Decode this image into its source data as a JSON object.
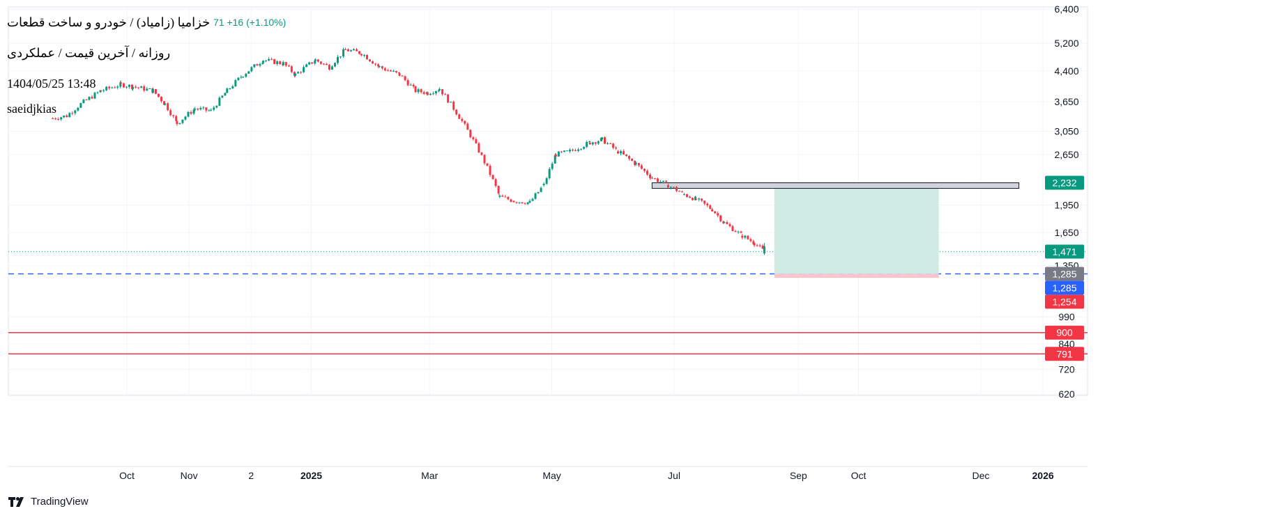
{
  "header": {
    "title": "خزامیا (زامیاد) / خودرو و ساخت قطعات",
    "subtitle": "روزانه / آخرین قیمت / عملکردی",
    "datetime": "1404/05/25 13:48",
    "author": "saeidjkias",
    "change_text": "71  +16 (+1.10%)"
  },
  "footer": {
    "brand": "TradingView",
    "logo_icon": "tradingview-logo-icon"
  },
  "colors": {
    "up": "#089981",
    "down": "#f23645",
    "grid": "#f0f3fa",
    "dashed_line": "#2962ff",
    "support_line": "#f23645",
    "target_zone": "#cfeae2",
    "stop_zone": "#f9c6cc",
    "resistance_box": "#d1d4dc"
  },
  "chart_data": {
    "type": "candlestick",
    "timeframe": "daily",
    "y_scale": "log",
    "ylim": [
      600,
      6700
    ],
    "y_ticks": [
      620,
      720,
      840,
      990,
      1350,
      1650,
      1950,
      2650,
      3050,
      3650,
      4400,
      5200,
      6400
    ],
    "x_ticks": [
      {
        "label": "Oct",
        "date": "2024-10-01",
        "bold": false
      },
      {
        "label": "Nov",
        "date": "2024-11-01",
        "bold": false
      },
      {
        "label": "2",
        "date": "2024-12-02",
        "bold": false
      },
      {
        "label": "2025",
        "date": "2025-01-01",
        "bold": true
      },
      {
        "label": "Mar",
        "date": "2025-03-01",
        "bold": false
      },
      {
        "label": "May",
        "date": "2025-05-01",
        "bold": false
      },
      {
        "label": "Jul",
        "date": "2025-07-01",
        "bold": false
      },
      {
        "label": "Sep",
        "date": "2025-09-01",
        "bold": false
      },
      {
        "label": "Oct",
        "date": "2025-10-01",
        "bold": false
      },
      {
        "label": "Dec",
        "date": "2025-12-01",
        "bold": false
      },
      {
        "label": "2026",
        "date": "2026-01-01",
        "bold": true
      }
    ],
    "price_path": [
      [
        "2024-08-25",
        3300
      ],
      [
        "2024-09-01",
        3350
      ],
      [
        "2024-09-08",
        3600
      ],
      [
        "2024-09-18",
        3900
      ],
      [
        "2024-09-28",
        4050
      ],
      [
        "2024-10-04",
        4000
      ],
      [
        "2024-10-14",
        3900
      ],
      [
        "2024-10-20",
        3600
      ],
      [
        "2024-10-26",
        3200
      ],
      [
        "2024-11-04",
        3500
      ],
      [
        "2024-11-12",
        3450
      ],
      [
        "2024-11-20",
        3900
      ],
      [
        "2024-11-28",
        4300
      ],
      [
        "2024-12-08",
        4700
      ],
      [
        "2024-12-18",
        4600
      ],
      [
        "2024-12-24",
        4300
      ],
      [
        "2025-01-03",
        4700
      ],
      [
        "2025-01-10",
        4500
      ],
      [
        "2025-01-18",
        5000
      ],
      [
        "2025-01-26",
        4900
      ],
      [
        "2025-02-04",
        4500
      ],
      [
        "2025-02-14",
        4300
      ],
      [
        "2025-02-22",
        3900
      ],
      [
        "2025-02-28",
        3850
      ],
      [
        "2025-03-06",
        3950
      ],
      [
        "2025-04-05",
        2050
      ],
      [
        "2025-04-12",
        2000
      ],
      [
        "2025-04-20",
        1980
      ],
      [
        "2025-04-27",
        2200
      ],
      [
        "2025-05-03",
        2650
      ],
      [
        "2025-05-10",
        2700
      ],
      [
        "2025-05-20",
        2850
      ],
      [
        "2025-05-26",
        2900
      ],
      [
        "2025-06-03",
        2700
      ],
      [
        "2025-06-12",
        2500
      ],
      [
        "2025-06-20",
        2300
      ],
      [
        "2025-06-28",
        2200
      ],
      [
        "2025-07-06",
        2080
      ],
      [
        "2025-07-12",
        2020
      ],
      [
        "2025-07-20",
        1900
      ],
      [
        "2025-07-26",
        1750
      ],
      [
        "2025-08-04",
        1620
      ],
      [
        "2025-08-10",
        1550
      ],
      [
        "2025-08-15",
        1471
      ]
    ],
    "last_price": 1471,
    "horizontal_lines": [
      {
        "value": 1285,
        "style": "dashed",
        "label": "1,285"
      },
      {
        "value": 900,
        "style": "solid",
        "label": "900"
      },
      {
        "value": 791,
        "style": "solid",
        "label": "791"
      }
    ],
    "resistance_zone": {
      "from_date": "2025-06-20",
      "to_date": "2025-12-20",
      "low": 2160,
      "high": 2232
    },
    "position_tool": {
      "from_date": "2025-08-20",
      "to_date": "2025-11-10",
      "entry": 1285,
      "target": 2232,
      "stop": 1254
    },
    "price_tags": [
      {
        "text": "2,232",
        "value": 2232,
        "color": "#089981"
      },
      {
        "text": "1,471",
        "value": 1471,
        "color": "#089981"
      },
      {
        "text": "1,285",
        "value": 1285,
        "color": "#787b86"
      },
      {
        "text": "1,285",
        "value": 1285,
        "color": "#2962ff",
        "offset": 1
      },
      {
        "text": "1,254",
        "value": 1254,
        "color": "#f23645",
        "offset": 1
      },
      {
        "text": "900",
        "value": 900,
        "color": "#f23645"
      },
      {
        "text": "791",
        "value": 791,
        "color": "#f23645"
      }
    ]
  }
}
